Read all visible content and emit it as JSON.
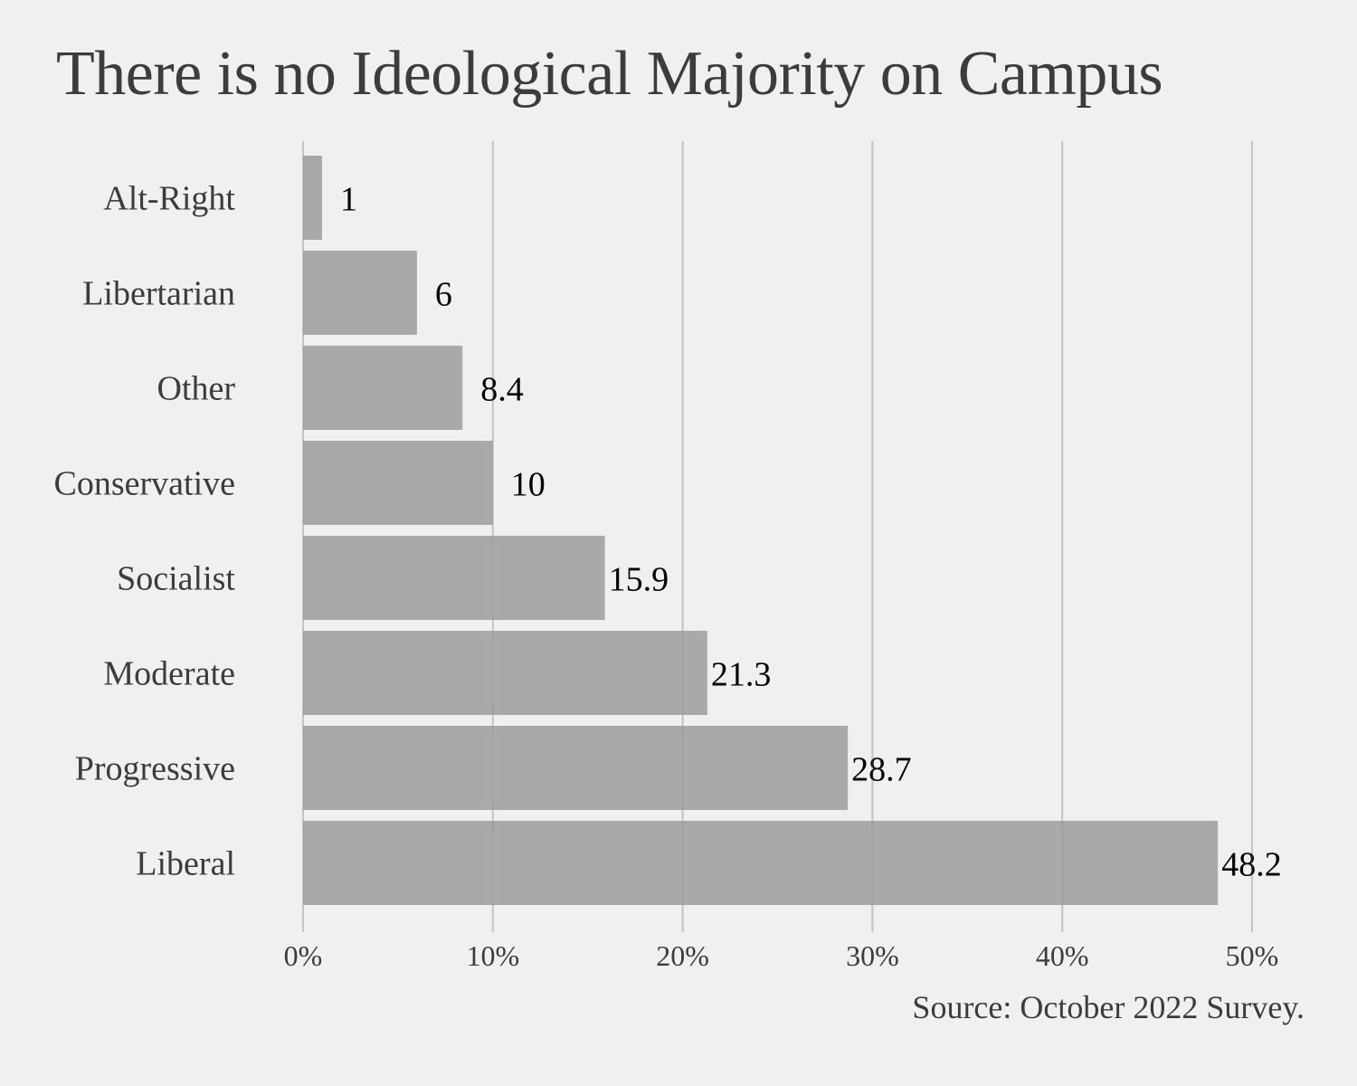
{
  "chart_data": {
    "type": "bar",
    "orientation": "horizontal",
    "title": "There is no Ideological Majority on Campus",
    "categories": [
      "Alt-Right",
      "Libertarian",
      "Other",
      "Conservative",
      "Socialist",
      "Moderate",
      "Progressive",
      "Liberal"
    ],
    "values": [
      1,
      6,
      8.4,
      10,
      15.9,
      21.3,
      28.7,
      48.2
    ],
    "value_labels": [
      "1",
      "6",
      "8.4",
      "10",
      "15.9",
      "21.3",
      "28.7",
      "48.2"
    ],
    "xlabel": "",
    "ylabel": "",
    "xlim": [
      0,
      50
    ],
    "x_ticks": [
      0,
      10,
      20,
      30,
      40,
      50
    ],
    "x_tick_labels": [
      "0%",
      "10%",
      "20%",
      "30%",
      "40%",
      "50%"
    ],
    "grid": "vertical",
    "bar_color": "#a3a3a3",
    "background_color": "#f0f0f0",
    "caption": "Source: October 2022 Survey."
  }
}
